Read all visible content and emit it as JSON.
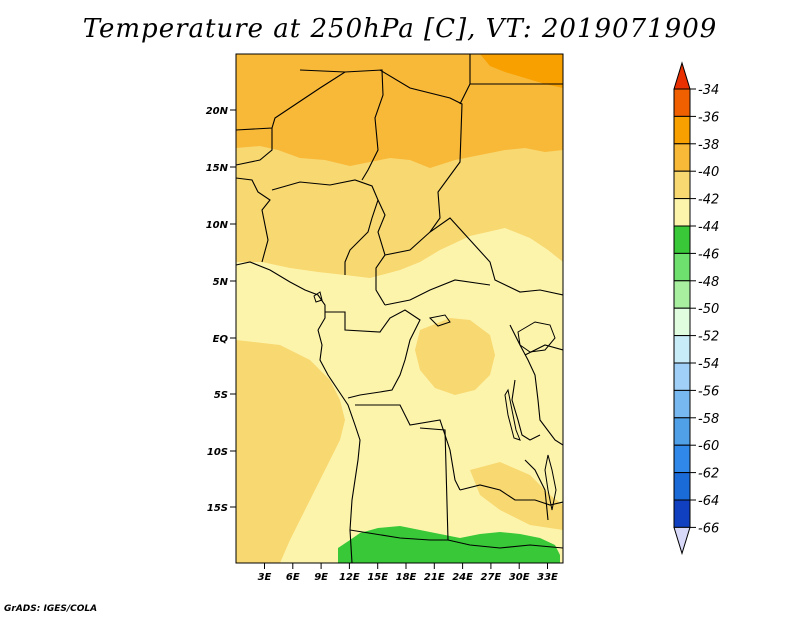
{
  "title": "Temperature at 250hPa [C], VT: 2019071909",
  "credit": "GrADS: IGES/COLA",
  "map": {
    "lat_ticks": [
      "20N",
      "15N",
      "10N",
      "5N",
      "EQ",
      "5S",
      "10S",
      "15S"
    ],
    "lon_ticks": [
      "3E",
      "6E",
      "9E",
      "12E",
      "15E",
      "18E",
      "21E",
      "24E",
      "27E",
      "30E",
      "33E"
    ]
  },
  "colorbar": {
    "labels": [
      "-34",
      "-36",
      "-38",
      "-40",
      "-42",
      "-44",
      "-46",
      "-48",
      "-50",
      "-52",
      "-54",
      "-56",
      "-58",
      "-60",
      "-62",
      "-64",
      "-66"
    ],
    "colors": [
      "#f06000",
      "#f8a000",
      "#f8b838",
      "#f8d870",
      "#fdf4ac",
      "#38c838",
      "#6ee06e",
      "#a8f0a0",
      "#e0fde0",
      "#c8ecf8",
      "#a0d0f8",
      "#78b8f0",
      "#50a0e8",
      "#3088e8",
      "#1a6ad8",
      "#1040c0",
      "#0a1878",
      "#d8d8f8"
    ],
    "top_color": "#e83000",
    "bottom_color": "#d8d8f8"
  }
}
